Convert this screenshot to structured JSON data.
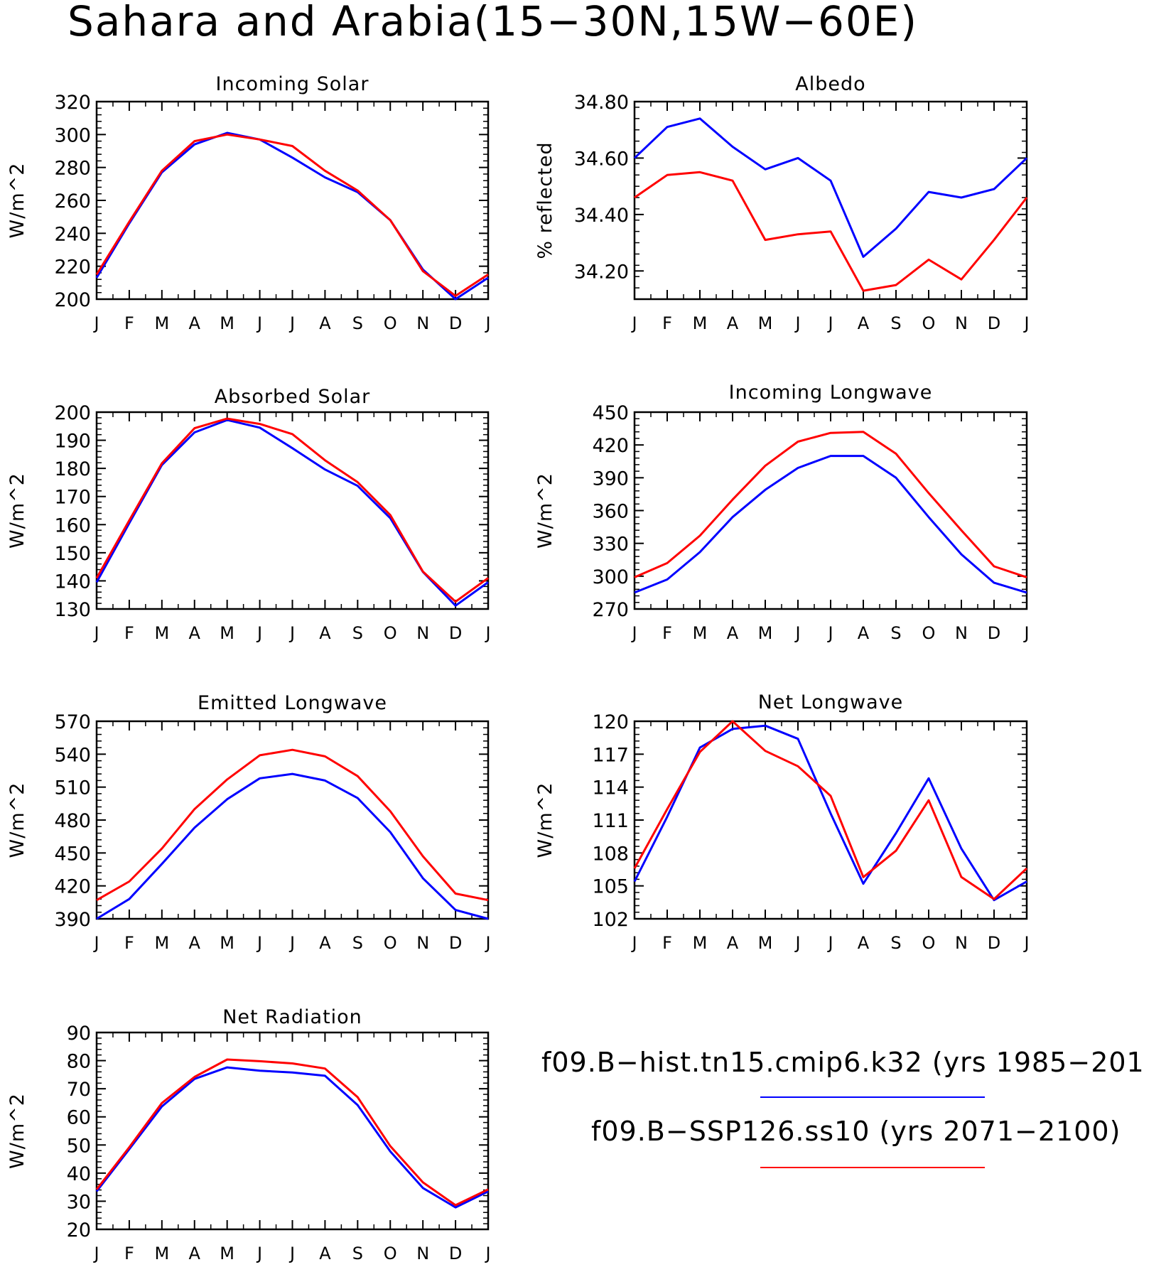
{
  "title": "Sahara and Arabia(15−30N,15W−60E)",
  "colors": {
    "series1": "#0000ff",
    "series2": "#ff0000",
    "axis": "#000000"
  },
  "legend": {
    "entries": [
      {
        "label": "f09.B−hist.tn15.cmip6.k32 (yrs 1985−201",
        "color": "#0000ff"
      },
      {
        "label": "f09.B−SSP126.ss10 (yrs 2071−2100)",
        "color": "#ff0000"
      }
    ]
  },
  "chart_data": [
    {
      "type": "line",
      "title": "Incoming Solar",
      "xlabel": "",
      "ylabel": "W/m^2",
      "categories": [
        "J",
        "F",
        "M",
        "A",
        "M",
        "J",
        "J",
        "A",
        "S",
        "O",
        "N",
        "D",
        "J"
      ],
      "ylim": [
        200,
        320
      ],
      "yticks": [
        "200",
        "220",
        "240",
        "260",
        "280",
        "300",
        "320"
      ],
      "series": [
        {
          "values": [
            213,
            246,
            277,
            294,
            301,
            297,
            286,
            274,
            265,
            248,
            218,
            200,
            213
          ]
        },
        {
          "values": [
            215,
            247,
            278,
            296,
            300,
            297,
            293,
            278,
            266,
            248,
            217,
            202,
            215
          ]
        }
      ]
    },
    {
      "type": "line",
      "title": "Albedo",
      "xlabel": "",
      "ylabel": "% reflected",
      "categories": [
        "J",
        "F",
        "M",
        "A",
        "M",
        "J",
        "J",
        "A",
        "S",
        "O",
        "N",
        "D",
        "J"
      ],
      "ylim": [
        34.1,
        34.8
      ],
      "yticks": [
        "34.20",
        "34.40",
        "34.60",
        "34.80"
      ],
      "series": [
        {
          "values": [
            34.6,
            34.71,
            34.74,
            34.64,
            34.56,
            34.6,
            34.52,
            34.25,
            34.35,
            34.48,
            34.46,
            34.49,
            34.6
          ]
        },
        {
          "values": [
            34.46,
            34.54,
            34.55,
            34.52,
            34.31,
            34.33,
            34.34,
            34.13,
            34.15,
            34.24,
            34.17,
            34.31,
            34.46
          ]
        }
      ]
    },
    {
      "type": "line",
      "title": "Absorbed Solar",
      "xlabel": "",
      "ylabel": "W/m^2",
      "categories": [
        "J",
        "F",
        "M",
        "A",
        "M",
        "J",
        "J",
        "A",
        "S",
        "O",
        "N",
        "D",
        "J"
      ],
      "ylim": [
        130,
        200
      ],
      "yticks": [
        "130",
        "140",
        "150",
        "160",
        "170",
        "180",
        "190",
        "200"
      ],
      "series": [
        {
          "values": [
            139.5,
            160.5,
            181.2,
            192.8,
            197.2,
            194.5,
            187.2,
            179.6,
            173.8,
            162.3,
            143.2,
            131.2,
            139.5
          ]
        },
        {
          "values": [
            141,
            161.5,
            181.8,
            194.3,
            197.7,
            195.8,
            192.2,
            182.9,
            175.1,
            163.4,
            143.3,
            132.6,
            141
          ]
        }
      ]
    },
    {
      "type": "line",
      "title": "Incoming Longwave",
      "xlabel": "",
      "ylabel": "W/m^2",
      "categories": [
        "J",
        "F",
        "M",
        "A",
        "M",
        "J",
        "J",
        "A",
        "S",
        "O",
        "N",
        "D",
        "J"
      ],
      "ylim": [
        270,
        450
      ],
      "yticks": [
        "270",
        "300",
        "330",
        "360",
        "390",
        "420",
        "450"
      ],
      "series": [
        {
          "values": [
            285,
            297,
            322,
            354,
            379,
            399,
            410,
            410,
            390,
            354,
            320,
            294,
            285
          ]
        },
        {
          "values": [
            299,
            312,
            337,
            370,
            401,
            423,
            431,
            432,
            412,
            376,
            342,
            309,
            299
          ]
        }
      ]
    },
    {
      "type": "line",
      "title": "Emitted Longwave",
      "xlabel": "",
      "ylabel": "W/m^2",
      "categories": [
        "J",
        "F",
        "M",
        "A",
        "M",
        "J",
        "J",
        "A",
        "S",
        "O",
        "N",
        "D",
        "J"
      ],
      "ylim": [
        390,
        570
      ],
      "yticks": [
        "390",
        "420",
        "450",
        "480",
        "510",
        "540",
        "570"
      ],
      "series": [
        {
          "values": [
            390,
            408,
            440,
            473,
            499,
            518,
            522,
            516,
            500,
            469,
            427,
            398,
            390
          ]
        },
        {
          "values": [
            407,
            424,
            454,
            490,
            517,
            539,
            544,
            538,
            520,
            488,
            447,
            413,
            407
          ]
        }
      ]
    },
    {
      "type": "line",
      "title": "Net Longwave",
      "xlabel": "",
      "ylabel": "W/m^2",
      "categories": [
        "J",
        "F",
        "M",
        "A",
        "M",
        "J",
        "J",
        "A",
        "S",
        "O",
        "N",
        "D",
        "J"
      ],
      "ylim": [
        102,
        120
      ],
      "yticks": [
        "102",
        "105",
        "108",
        "111",
        "114",
        "117",
        "120"
      ],
      "series": [
        {
          "values": [
            105.4,
            111.3,
            117.6,
            119.3,
            119.6,
            118.4,
            111.6,
            105.2,
            109.8,
            114.8,
            108.4,
            103.7,
            105.4
          ]
        },
        {
          "values": [
            106.6,
            112.0,
            117.2,
            120.0,
            117.3,
            115.9,
            113.2,
            105.8,
            108.2,
            112.8,
            105.8,
            103.8,
            106.6
          ]
        }
      ]
    },
    {
      "type": "line",
      "title": "Net Radiation",
      "xlabel": "",
      "ylabel": "W/m^2",
      "categories": [
        "J",
        "F",
        "M",
        "A",
        "M",
        "J",
        "J",
        "A",
        "S",
        "O",
        "N",
        "D",
        "J"
      ],
      "ylim": [
        20,
        90
      ],
      "yticks": [
        "20",
        "30",
        "40",
        "50",
        "60",
        "70",
        "80",
        "90"
      ],
      "series": [
        {
          "values": [
            33.5,
            48.5,
            63.7,
            73.5,
            77.6,
            76.4,
            75.8,
            74.6,
            64.2,
            47.7,
            34.7,
            27.8,
            33.5
          ]
        },
        {
          "values": [
            34.2,
            49.2,
            64.9,
            74.2,
            80.4,
            79.8,
            79.0,
            77.2,
            67.0,
            49.6,
            36.7,
            28.6,
            34.2
          ]
        }
      ]
    }
  ]
}
